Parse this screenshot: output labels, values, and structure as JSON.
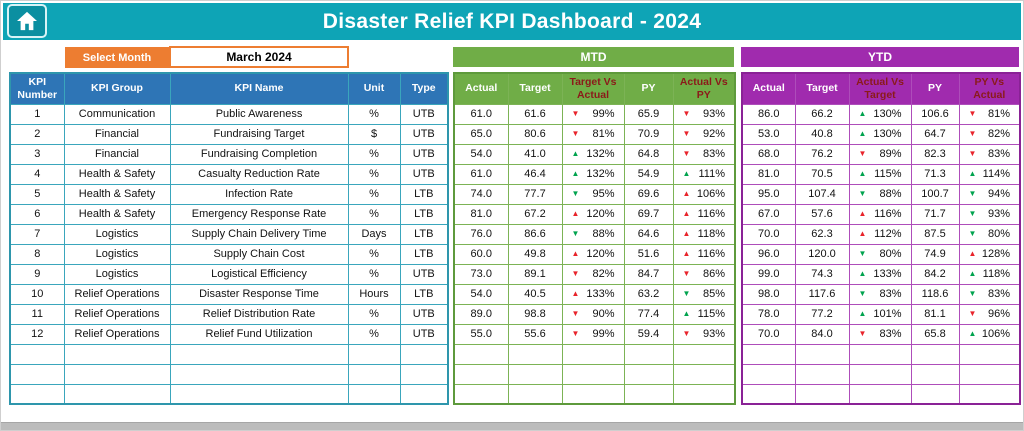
{
  "title": "Disaster Relief KPI Dashboard - 2024",
  "controls": {
    "select_month_label": "Select Month",
    "selected_month": "March 2024"
  },
  "sections": {
    "mtd_label": "MTD",
    "ytd_label": "YTD"
  },
  "colors": {
    "header_teal": "#0EA4B6",
    "info_header_blue": "#2E75B6",
    "mtd_green": "#70AD47",
    "ytd_purple": "#A02BAE",
    "month_orange": "#ED7D31",
    "arrow_red": "#E8232A",
    "arrow_green": "#00A34E"
  },
  "table": {
    "info_headers": [
      "KPI Number",
      "KPI Group",
      "KPI Name",
      "Unit",
      "Type"
    ],
    "mtd_headers": [
      "Actual",
      "Target",
      "Target Vs Actual",
      "PY",
      "Actual Vs PY"
    ],
    "ytd_headers": [
      "Actual",
      "Target",
      "Actual Vs Target",
      "PY",
      "PY Vs Actual"
    ],
    "empty_rows": 3,
    "rows": [
      {
        "number": "1",
        "group": "Communication",
        "name": "Public Awareness",
        "unit": "%",
        "type": "UTB",
        "mtd": {
          "actual": "61.0",
          "target": "61.6",
          "target_vs_actual": {
            "dir": "down",
            "color": "red",
            "value": "99%"
          },
          "py": "65.9",
          "actual_vs_py": {
            "dir": "down",
            "color": "red",
            "value": "93%"
          }
        },
        "ytd": {
          "actual": "86.0",
          "target": "66.2",
          "actual_vs_target": {
            "dir": "up",
            "color": "green",
            "value": "130%"
          },
          "py": "106.6",
          "py_vs_actual": {
            "dir": "down",
            "color": "red",
            "value": "81%"
          }
        }
      },
      {
        "number": "2",
        "group": "Financial",
        "name": "Fundraising Target",
        "unit": "$",
        "type": "UTB",
        "mtd": {
          "actual": "65.0",
          "target": "80.6",
          "target_vs_actual": {
            "dir": "down",
            "color": "red",
            "value": "81%"
          },
          "py": "70.9",
          "actual_vs_py": {
            "dir": "down",
            "color": "red",
            "value": "92%"
          }
        },
        "ytd": {
          "actual": "53.0",
          "target": "40.8",
          "actual_vs_target": {
            "dir": "up",
            "color": "green",
            "value": "130%"
          },
          "py": "64.7",
          "py_vs_actual": {
            "dir": "down",
            "color": "red",
            "value": "82%"
          }
        }
      },
      {
        "number": "3",
        "group": "Financial",
        "name": "Fundraising Completion",
        "unit": "%",
        "type": "UTB",
        "mtd": {
          "actual": "54.0",
          "target": "41.0",
          "target_vs_actual": {
            "dir": "up",
            "color": "green",
            "value": "132%"
          },
          "py": "64.8",
          "actual_vs_py": {
            "dir": "down",
            "color": "red",
            "value": "83%"
          }
        },
        "ytd": {
          "actual": "68.0",
          "target": "76.2",
          "actual_vs_target": {
            "dir": "down",
            "color": "red",
            "value": "89%"
          },
          "py": "82.3",
          "py_vs_actual": {
            "dir": "down",
            "color": "red",
            "value": "83%"
          }
        }
      },
      {
        "number": "4",
        "group": "Health & Safety",
        "name": "Casualty Reduction Rate",
        "unit": "%",
        "type": "UTB",
        "mtd": {
          "actual": "61.0",
          "target": "46.4",
          "target_vs_actual": {
            "dir": "up",
            "color": "green",
            "value": "132%"
          },
          "py": "54.9",
          "actual_vs_py": {
            "dir": "up",
            "color": "green",
            "value": "111%"
          }
        },
        "ytd": {
          "actual": "81.0",
          "target": "70.5",
          "actual_vs_target": {
            "dir": "up",
            "color": "green",
            "value": "115%"
          },
          "py": "71.3",
          "py_vs_actual": {
            "dir": "up",
            "color": "green",
            "value": "114%"
          }
        }
      },
      {
        "number": "5",
        "group": "Health & Safety",
        "name": "Infection Rate",
        "unit": "%",
        "type": "LTB",
        "mtd": {
          "actual": "74.0",
          "target": "77.7",
          "target_vs_actual": {
            "dir": "down",
            "color": "green",
            "value": "95%"
          },
          "py": "69.6",
          "actual_vs_py": {
            "dir": "up",
            "color": "red",
            "value": "106%"
          }
        },
        "ytd": {
          "actual": "95.0",
          "target": "107.4",
          "actual_vs_target": {
            "dir": "down",
            "color": "green",
            "value": "88%"
          },
          "py": "100.7",
          "py_vs_actual": {
            "dir": "down",
            "color": "green",
            "value": "94%"
          }
        }
      },
      {
        "number": "6",
        "group": "Health & Safety",
        "name": "Emergency Response Rate",
        "unit": "%",
        "type": "LTB",
        "mtd": {
          "actual": "81.0",
          "target": "67.2",
          "target_vs_actual": {
            "dir": "up",
            "color": "red",
            "value": "120%"
          },
          "py": "69.7",
          "actual_vs_py": {
            "dir": "up",
            "color": "red",
            "value": "116%"
          }
        },
        "ytd": {
          "actual": "67.0",
          "target": "57.6",
          "actual_vs_target": {
            "dir": "up",
            "color": "red",
            "value": "116%"
          },
          "py": "71.7",
          "py_vs_actual": {
            "dir": "down",
            "color": "green",
            "value": "93%"
          }
        }
      },
      {
        "number": "7",
        "group": "Logistics",
        "name": "Supply Chain Delivery Time",
        "unit": "Days",
        "type": "LTB",
        "mtd": {
          "actual": "76.0",
          "target": "86.6",
          "target_vs_actual": {
            "dir": "down",
            "color": "green",
            "value": "88%"
          },
          "py": "64.6",
          "actual_vs_py": {
            "dir": "up",
            "color": "red",
            "value": "118%"
          }
        },
        "ytd": {
          "actual": "70.0",
          "target": "62.3",
          "actual_vs_target": {
            "dir": "up",
            "color": "red",
            "value": "112%"
          },
          "py": "87.5",
          "py_vs_actual": {
            "dir": "down",
            "color": "green",
            "value": "80%"
          }
        }
      },
      {
        "number": "8",
        "group": "Logistics",
        "name": "Supply Chain Cost",
        "unit": "%",
        "type": "LTB",
        "mtd": {
          "actual": "60.0",
          "target": "49.8",
          "target_vs_actual": {
            "dir": "up",
            "color": "red",
            "value": "120%"
          },
          "py": "51.6",
          "actual_vs_py": {
            "dir": "up",
            "color": "red",
            "value": "116%"
          }
        },
        "ytd": {
          "actual": "96.0",
          "target": "120.0",
          "actual_vs_target": {
            "dir": "down",
            "color": "green",
            "value": "80%"
          },
          "py": "74.9",
          "py_vs_actual": {
            "dir": "up",
            "color": "red",
            "value": "128%"
          }
        }
      },
      {
        "number": "9",
        "group": "Logistics",
        "name": "Logistical Efficiency",
        "unit": "%",
        "type": "UTB",
        "mtd": {
          "actual": "73.0",
          "target": "89.1",
          "target_vs_actual": {
            "dir": "down",
            "color": "red",
            "value": "82%"
          },
          "py": "84.7",
          "actual_vs_py": {
            "dir": "down",
            "color": "red",
            "value": "86%"
          }
        },
        "ytd": {
          "actual": "99.0",
          "target": "74.3",
          "actual_vs_target": {
            "dir": "up",
            "color": "green",
            "value": "133%"
          },
          "py": "84.2",
          "py_vs_actual": {
            "dir": "up",
            "color": "green",
            "value": "118%"
          }
        }
      },
      {
        "number": "10",
        "group": "Relief Operations",
        "name": "Disaster Response Time",
        "unit": "Hours",
        "type": "LTB",
        "mtd": {
          "actual": "54.0",
          "target": "40.5",
          "target_vs_actual": {
            "dir": "up",
            "color": "red",
            "value": "133%"
          },
          "py": "63.2",
          "actual_vs_py": {
            "dir": "down",
            "color": "green",
            "value": "85%"
          }
        },
        "ytd": {
          "actual": "98.0",
          "target": "117.6",
          "actual_vs_target": {
            "dir": "down",
            "color": "green",
            "value": "83%"
          },
          "py": "118.6",
          "py_vs_actual": {
            "dir": "down",
            "color": "green",
            "value": "83%"
          }
        }
      },
      {
        "number": "11",
        "group": "Relief Operations",
        "name": "Relief Distribution Rate",
        "unit": "%",
        "type": "UTB",
        "mtd": {
          "actual": "89.0",
          "target": "98.8",
          "target_vs_actual": {
            "dir": "down",
            "color": "red",
            "value": "90%"
          },
          "py": "77.4",
          "actual_vs_py": {
            "dir": "up",
            "color": "green",
            "value": "115%"
          }
        },
        "ytd": {
          "actual": "78.0",
          "target": "77.2",
          "actual_vs_target": {
            "dir": "up",
            "color": "green",
            "value": "101%"
          },
          "py": "81.1",
          "py_vs_actual": {
            "dir": "down",
            "color": "red",
            "value": "96%"
          }
        }
      },
      {
        "number": "12",
        "group": "Relief Operations",
        "name": "Relief Fund Utilization",
        "unit": "%",
        "type": "UTB",
        "mtd": {
          "actual": "55.0",
          "target": "55.6",
          "target_vs_actual": {
            "dir": "down",
            "color": "red",
            "value": "99%"
          },
          "py": "59.4",
          "actual_vs_py": {
            "dir": "down",
            "color": "red",
            "value": "93%"
          }
        },
        "ytd": {
          "actual": "70.0",
          "target": "84.0",
          "actual_vs_target": {
            "dir": "down",
            "color": "red",
            "value": "83%"
          },
          "py": "65.8",
          "py_vs_actual": {
            "dir": "up",
            "color": "green",
            "value": "106%"
          }
        }
      }
    ]
  }
}
